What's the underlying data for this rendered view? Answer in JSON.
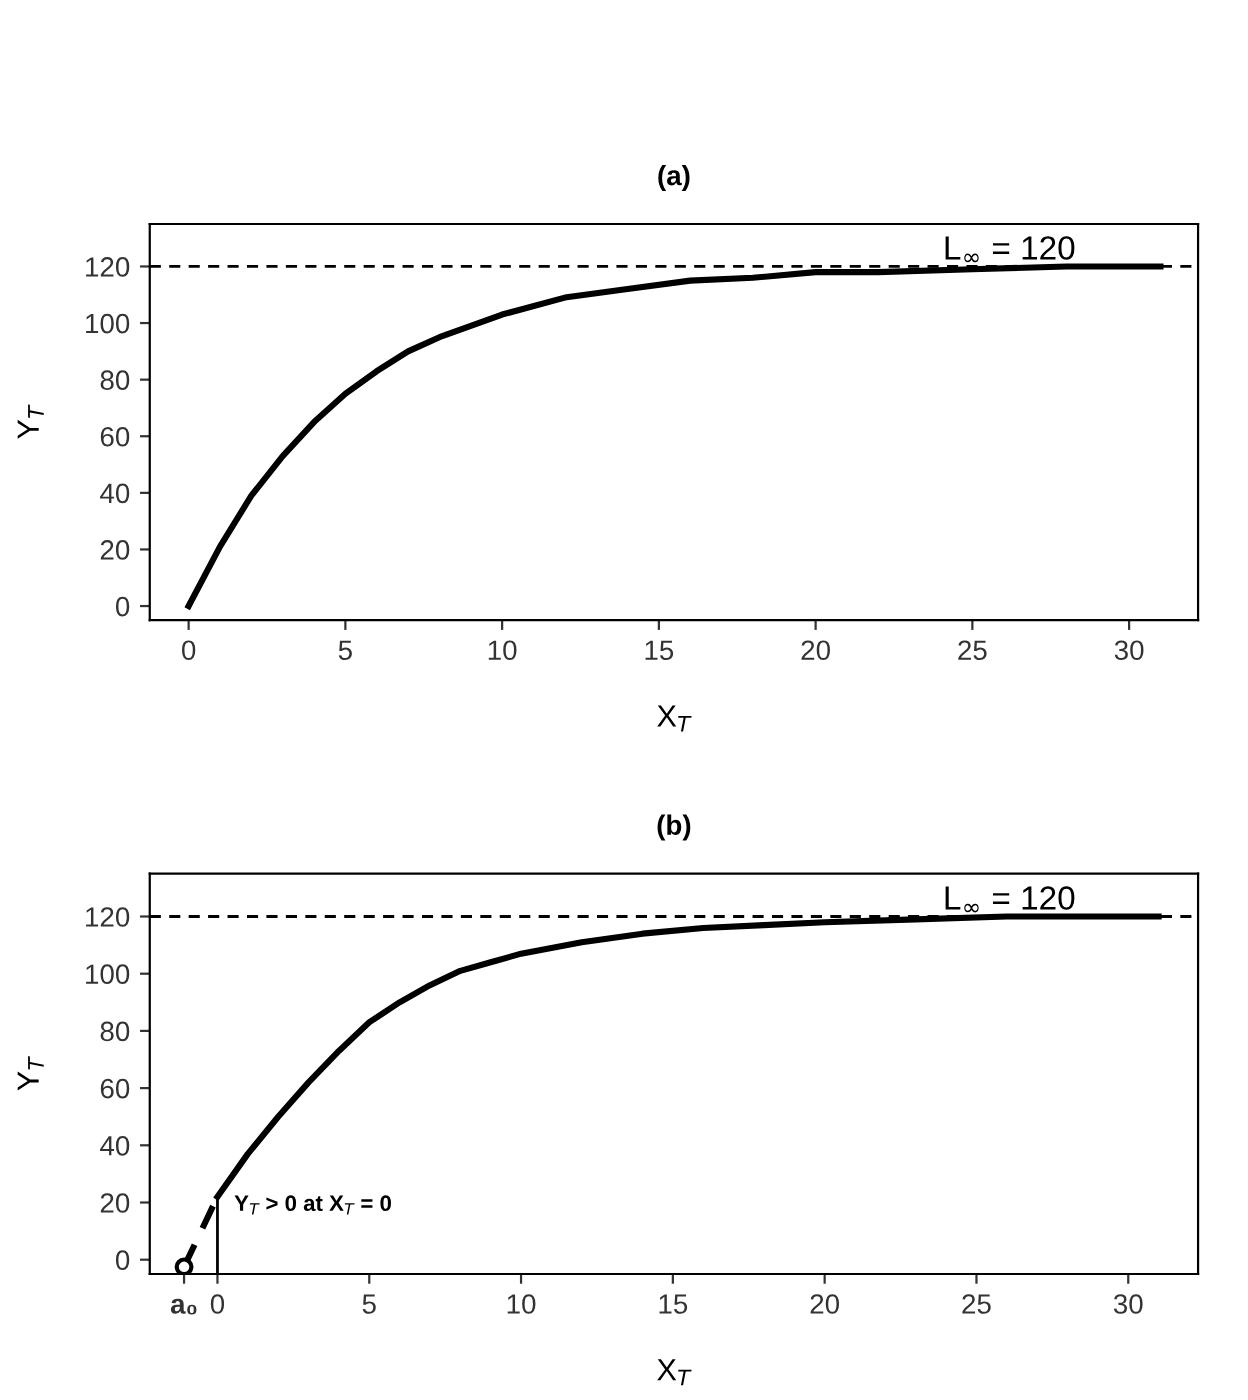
{
  "chart_data": [
    {
      "type": "line",
      "title": "(a)",
      "xlabel": "X$_{T}$",
      "ylabel": "Y$_{T}$",
      "xlim": [
        -1.24,
        32.2
      ],
      "ylim": [
        -5,
        135
      ],
      "xticks": [
        0,
        5,
        10,
        15,
        20,
        25,
        30
      ],
      "yticks": [
        0,
        20,
        40,
        60,
        80,
        100,
        120
      ],
      "grid": false,
      "legend": false,
      "series": [
        {
          "color": "#000000",
          "line_style": "solid",
          "x": [
            0,
            1,
            2,
            3,
            4,
            5,
            6,
            7,
            8,
            9,
            10,
            12,
            14,
            16,
            18,
            20,
            22,
            25,
            28,
            31
          ],
          "values": [
            0,
            21,
            39,
            53,
            65,
            75,
            83,
            90,
            95,
            99,
            103,
            109,
            112,
            115,
            116,
            118,
            118,
            119,
            120,
            120
          ]
        }
      ],
      "ref_lines": [
        {
          "axis": "y",
          "value": 120,
          "label": "L$_{∞}$ = 120",
          "line_style": "dashed",
          "color": "#000000"
        }
      ]
    },
    {
      "type": "line",
      "title": "(b)",
      "xlabel": "X$_{T}$",
      "ylabel": "Y$_{T}$",
      "xlim": [
        -2.23,
        32.3
      ],
      "ylim": [
        -5,
        135
      ],
      "xticks": [
        {
          "value": -1.1,
          "label": "a₀"
        },
        0,
        5,
        10,
        15,
        20,
        25,
        30
      ],
      "yticks": [
        0,
        20,
        40,
        60,
        80,
        100,
        120
      ],
      "grid": false,
      "legend": false,
      "series": [
        {
          "color": "#000000",
          "line_style": "solid",
          "x": [
            0,
            1,
            2,
            3,
            4,
            5,
            6,
            7,
            8,
            9,
            10,
            12,
            14,
            16,
            18,
            20,
            23,
            26,
            31
          ],
          "values": [
            22,
            37,
            50,
            62,
            73,
            83,
            90,
            96,
            101,
            104,
            107,
            111,
            114,
            116,
            117,
            118,
            119,
            120,
            120
          ]
        },
        {
          "color": "#000000",
          "line_style": "dashed",
          "x": [
            -1.1,
            0
          ],
          "values": [
            -2.5,
            22
          ]
        },
        {
          "color": "#000000",
          "line_style": "solid",
          "x": [
            0,
            0
          ],
          "values": [
            -5,
            22
          ]
        },
        {
          "type": "scatter",
          "color": "#000000",
          "marker": "circle",
          "x": [
            -1.1
          ],
          "values": [
            -2.5
          ]
        }
      ],
      "ref_lines": [
        {
          "axis": "y",
          "value": 120,
          "label": "L$_{∞}$ = 120",
          "line_style": "dashed",
          "color": "#000000"
        }
      ],
      "annotations": [
        {
          "text": "Y$_{T}$ > 0 at X$_{T}$ = 0",
          "x": 0,
          "y": 22
        }
      ]
    }
  ]
}
